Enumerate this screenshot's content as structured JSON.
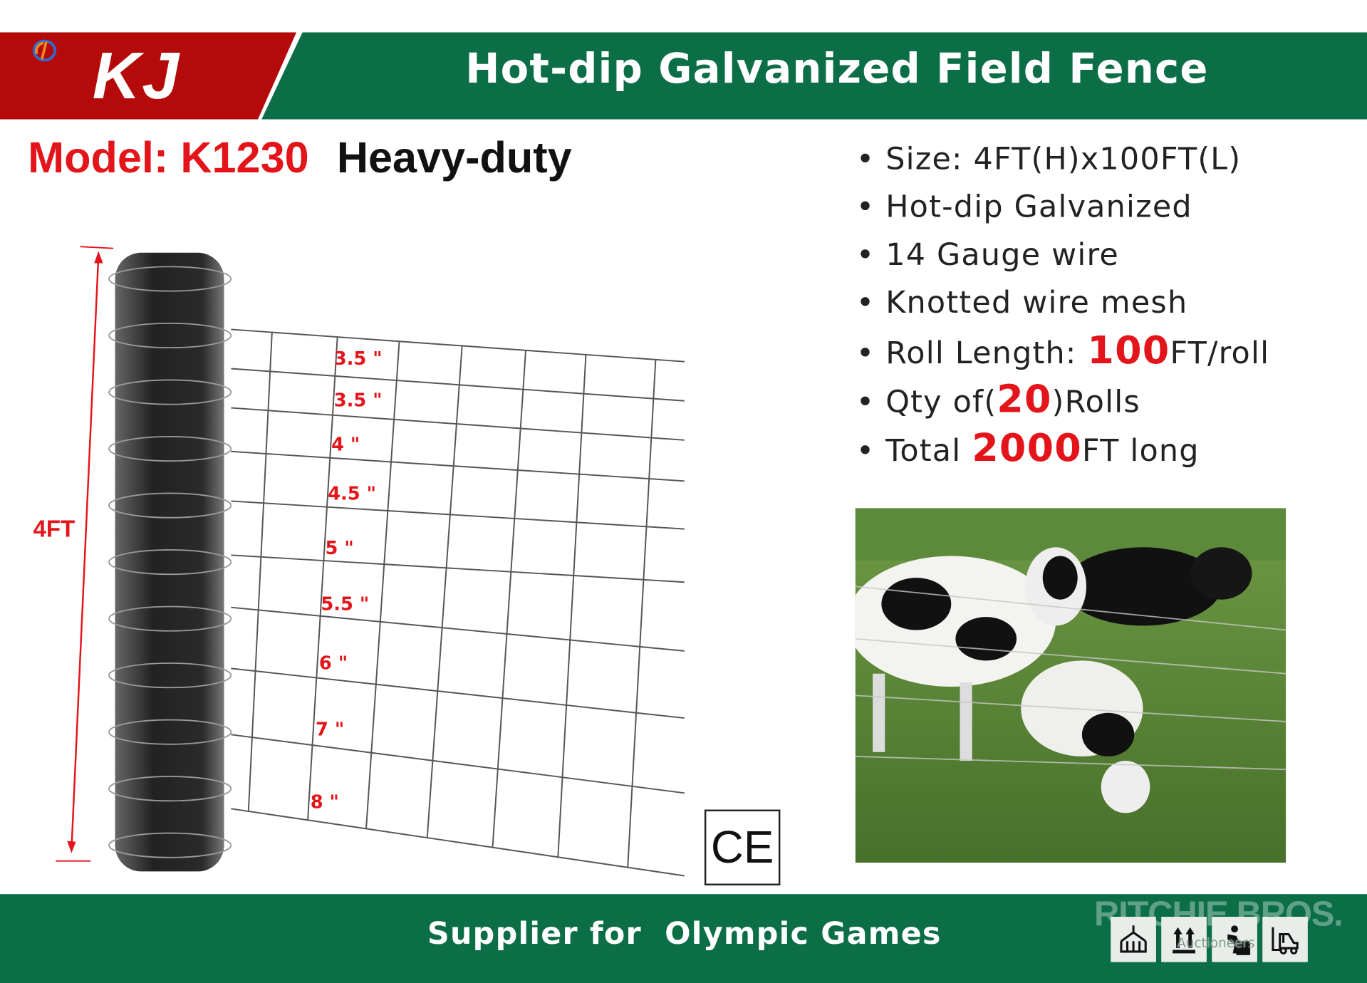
{
  "brand": {
    "logo_text": "KJ",
    "red": "#b40a0a",
    "green": "#0b6e47"
  },
  "header": {
    "title": "Hot-dip Galvanized Field Fence"
  },
  "model": {
    "label": "Model: K1230",
    "grade": "Heavy-duty"
  },
  "specs": {
    "size": "Size: 4FT(H)x100FT(L)",
    "coating": "Hot-dip Galvanized",
    "gauge": "14 Gauge wire",
    "mesh": "Knotted wire mesh",
    "roll_prefix": "Roll Length: ",
    "roll_value": "100",
    "roll_suffix": "FT/roll",
    "qty_prefix": "Qty of(",
    "qty_value": "20",
    "qty_suffix": ")Rolls",
    "total_prefix": "Total ",
    "total_value": "2000",
    "total_suffix": "FT long"
  },
  "diagram": {
    "height_label": "4FT",
    "spacings": [
      "3.5 \"",
      "3.5 \"",
      "4 \"",
      "4.5 \"",
      "5 \"",
      "5.5 \"",
      "6 \"",
      "7 \"",
      "8 \""
    ],
    "label_color": "#e3151a"
  },
  "certification": {
    "mark": "CE"
  },
  "footer": {
    "text": "Supplier for  Olympic Games",
    "icons": [
      "container-lift-icon",
      "this-side-up-icon",
      "heavy-lifting-icon",
      "forklift-icon"
    ]
  },
  "watermark": {
    "name": "RITCHIE BROS.",
    "sub": "Auctioneers"
  }
}
